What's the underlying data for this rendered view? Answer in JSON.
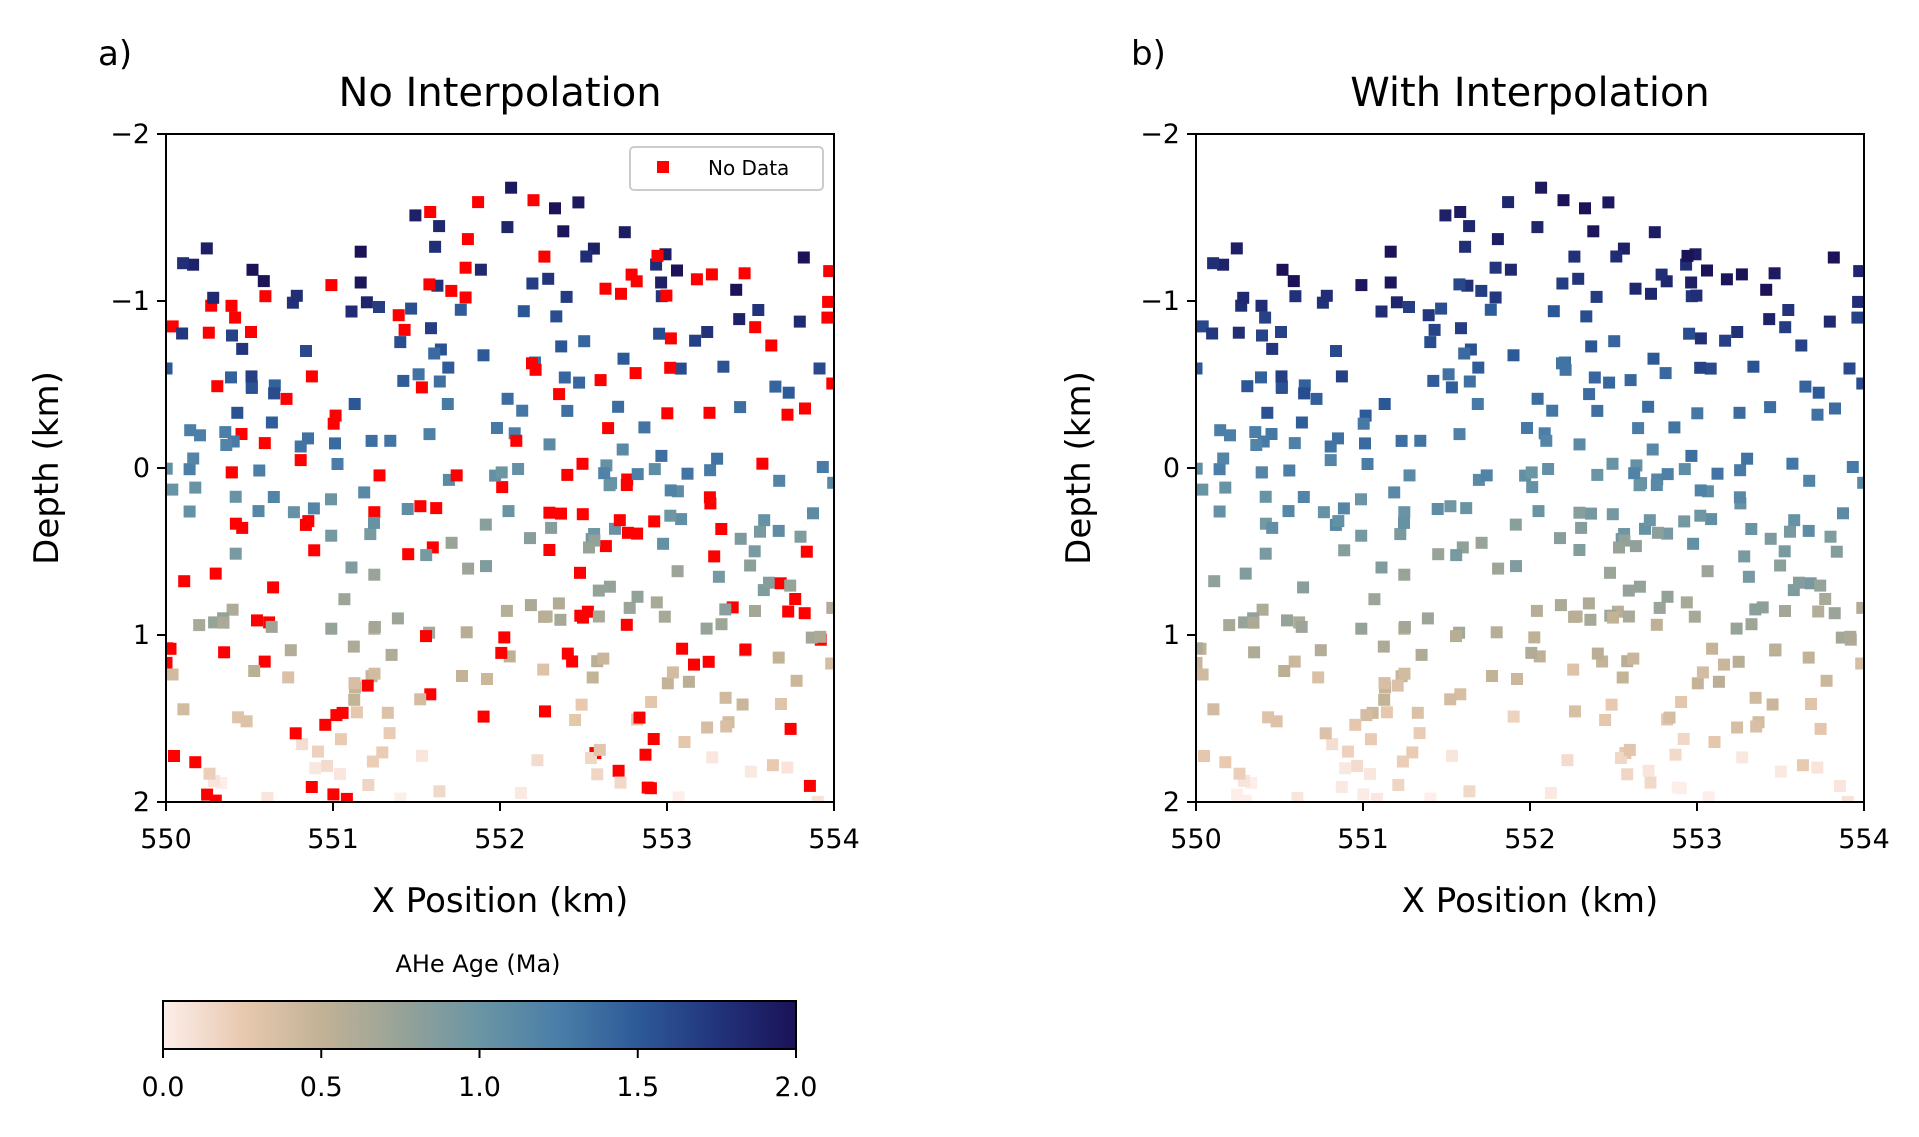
{
  "figure": {
    "colorbar": {
      "label": "AHe Age (Ma)",
      "range": [
        0.0,
        2.0
      ],
      "ticks": [
        "0.0",
        "0.5",
        "1.0",
        "1.5",
        "2.0"
      ],
      "colormap": [
        "#fdeeea",
        "#e8c9b0",
        "#c2b296",
        "#97a398",
        "#6a95a4",
        "#4a7ea8",
        "#2d5a98",
        "#22347c",
        "#1b1257"
      ]
    }
  },
  "chart_data": [
    {
      "type": "scatter",
      "panel_label": "a)",
      "title": "No Interpolation",
      "xlabel": "X Position (km)",
      "ylabel": "Depth (km)",
      "xlim": [
        550,
        554
      ],
      "ylim": [
        2,
        -2
      ],
      "y_inverted": true,
      "xticks": [
        "550",
        "551",
        "552",
        "553",
        "554"
      ],
      "yticks": [
        "−2",
        "−1",
        "0",
        "1",
        "2"
      ],
      "yticks_values": [
        -2,
        -1,
        0,
        1,
        2
      ],
      "legend": {
        "label": "No Data",
        "color": "#ff0000",
        "placement": "top-right"
      },
      "color_encoding": "AHe Age (Ma) from colorbar 0.0–2.0",
      "no_data_color": "#ff0000",
      "point_count_estimate": 420,
      "no_data_fraction_estimate": 0.35
    },
    {
      "type": "scatter",
      "panel_label": "b)",
      "title": "With Interpolation",
      "xlabel": "X Position (km)",
      "ylabel": "Depth (km)",
      "xlim": [
        550,
        554
      ],
      "ylim": [
        2,
        -2
      ],
      "y_inverted": true,
      "xticks": [
        "550",
        "551",
        "552",
        "553",
        "554"
      ],
      "yticks": [
        "−2",
        "−1",
        "0",
        "1",
        "2"
      ],
      "yticks_values": [
        -2,
        -1,
        0,
        1,
        2
      ],
      "color_encoding": "AHe Age (Ma) from colorbar 0.0–2.0",
      "point_count_estimate": 420
    }
  ]
}
